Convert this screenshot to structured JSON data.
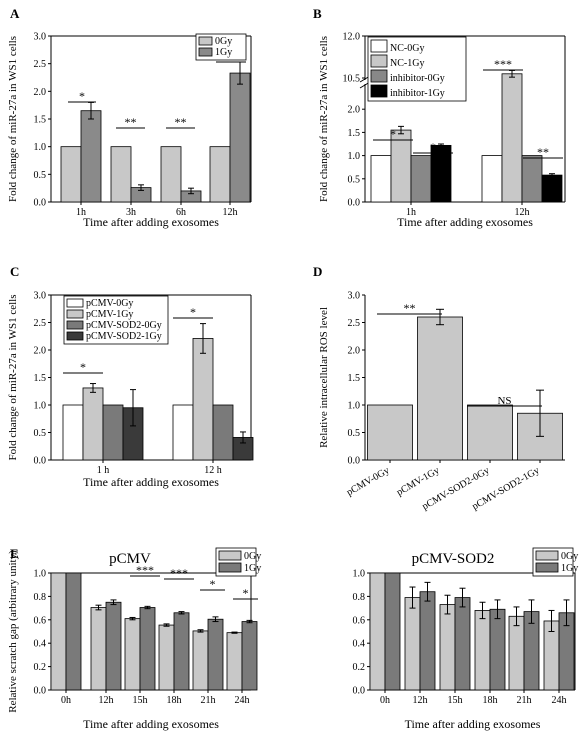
{
  "colors": {
    "white": "#ffffff",
    "light": "#c8c8c8",
    "mid": "#909090",
    "dark": "#606060",
    "darker": "#3a3a3a",
    "black": "#000000"
  },
  "chart_data": [
    {
      "panel": "A",
      "type": "bar",
      "categories": [
        "1h",
        "3h",
        "6h",
        "12h"
      ],
      "series": [
        {
          "name": "0Gy",
          "values": [
            1.0,
            1.0,
            1.0,
            1.0
          ],
          "errors": [
            0,
            0,
            0,
            0
          ],
          "color": "#c8c8c8"
        },
        {
          "name": "1Gy",
          "values": [
            1.65,
            0.26,
            0.2,
            2.33
          ],
          "errors": [
            0.15,
            0.05,
            0.05,
            0.2
          ],
          "color": "#8a8a8a"
        }
      ],
      "ylim": [
        0,
        3.0
      ],
      "yticks": [
        "0.0",
        "0.5",
        "1.0",
        "1.5",
        "2.0",
        "2.5",
        "3.0"
      ],
      "ylabel": "Fold change of miR-27a in WS1 cells",
      "xlabel": "Time after adding exosomes",
      "legend": "top-right",
      "annotations": [
        "*",
        "**",
        "**",
        "*"
      ]
    },
    {
      "panel": "B",
      "type": "bar",
      "categories": [
        "1h",
        "12h"
      ],
      "series": [
        {
          "name": "NC-0Gy",
          "values": [
            1.0,
            1.0
          ],
          "errors": [
            0,
            0
          ],
          "color": "#ffffff"
        },
        {
          "name": "NC-1Gy",
          "values": [
            1.55,
            10.65
          ],
          "errors": [
            0.08,
            0.12
          ],
          "color": "#c8c8c8"
        },
        {
          "name": "inhibitor-0Gy",
          "values": [
            1.0,
            1.0
          ],
          "errors": [
            0,
            0
          ],
          "color": "#888888"
        },
        {
          "name": "inhibitor-1Gy",
          "values": [
            1.22,
            0.58
          ],
          "errors": [
            0.03,
            0.03
          ],
          "color": "#000000"
        }
      ],
      "ylim": [
        0,
        12.0
      ],
      "axis_break": [
        2.5,
        10.5
      ],
      "yticks": [
        "0.0",
        "0.5",
        "1.0",
        "1.5",
        "2.0",
        "10.5",
        "12.0"
      ],
      "ylabel": "Fold change of miR-27a in WS1 cells",
      "xlabel": "Time after adding exosomes",
      "legend": "top-left",
      "annotations": [
        "*",
        "*",
        "***",
        "**"
      ]
    },
    {
      "panel": "C",
      "type": "bar",
      "categories": [
        "1 h",
        "12 h"
      ],
      "series": [
        {
          "name": "pCMV-0Gy",
          "values": [
            1.0,
            1.0
          ],
          "errors": [
            0,
            0
          ],
          "color": "#ffffff"
        },
        {
          "name": "pCMV-1Gy",
          "values": [
            1.31,
            2.21
          ],
          "errors": [
            0.08,
            0.27
          ],
          "color": "#c8c8c8"
        },
        {
          "name": "pCMV-SOD2-0Gy",
          "values": [
            1.0,
            1.0
          ],
          "errors": [
            0,
            0
          ],
          "color": "#7a7a7a"
        },
        {
          "name": "pCMV-SOD2-1Gy",
          "values": [
            0.95,
            0.41
          ],
          "errors": [
            0.33,
            0.1
          ],
          "color": "#3a3a3a"
        }
      ],
      "ylim": [
        0,
        3.0
      ],
      "yticks": [
        "0.0",
        "0.5",
        "1.0",
        "1.5",
        "2.0",
        "2.5",
        "3.0"
      ],
      "ylabel": "Fold change of miR-27a in WS1 cells",
      "xlabel": "Time after adding exosomes",
      "legend": "top-left",
      "annotations": [
        "*",
        "*"
      ]
    },
    {
      "panel": "D",
      "type": "bar",
      "categories": [
        "pCMV-0Gy",
        "pCMV-1Gy",
        "pCMV-SOD2-0Gy",
        "pCMV-SOD2-1Gy"
      ],
      "values": [
        1.0,
        2.6,
        1.0,
        0.85
      ],
      "errors": [
        0,
        0.14,
        0,
        0.42
      ],
      "color": "#c8c8c8",
      "ylim": [
        0,
        3.0
      ],
      "yticks": [
        "0.0",
        "0.5",
        "1.0",
        "1.5",
        "2.0",
        "2.5",
        "3.0"
      ],
      "ylabel": "Relative intracellular ROS level",
      "annotations": [
        "**",
        "NS"
      ]
    },
    {
      "panel": "E",
      "type": "bar",
      "title": "pCMV",
      "categories": [
        "0h",
        "12h",
        "15h",
        "18h",
        "21h",
        "24h"
      ],
      "series": [
        {
          "name": "0Gy",
          "values": [
            1.0,
            0.705,
            0.61,
            0.555,
            0.505,
            0.49
          ],
          "errors": [
            0,
            0.02,
            0.01,
            0.01,
            0.01,
            0.005
          ],
          "color": "#c8c8c8"
        },
        {
          "name": "1Gy",
          "values": [
            1.0,
            0.75,
            0.705,
            0.66,
            0.605,
            0.585
          ],
          "errors": [
            0,
            0.02,
            0.01,
            0.01,
            0.02,
            0.01
          ],
          "color": "#7a7a7a"
        }
      ],
      "ylim": [
        0,
        1.0
      ],
      "yticks": [
        "0.0",
        "0.2",
        "0.4",
        "0.6",
        "0.8",
        "1.0"
      ],
      "ylabel": "Relative scratch gap (arbitrary unity)",
      "xlabel": "Time after adding exosomes",
      "legend": "top-right",
      "annotations": [
        "***",
        "***",
        "*",
        "*"
      ]
    },
    {
      "panel": "",
      "type": "bar",
      "title": "pCMV-SOD2",
      "categories": [
        "0h",
        "12h",
        "15h",
        "18h",
        "21h",
        "24h"
      ],
      "series": [
        {
          "name": "0Gy",
          "values": [
            1.0,
            0.79,
            0.73,
            0.68,
            0.63,
            0.59
          ],
          "errors": [
            0,
            0.09,
            0.08,
            0.07,
            0.08,
            0.09
          ],
          "color": "#c8c8c8"
        },
        {
          "name": "1Gy",
          "values": [
            1.0,
            0.84,
            0.79,
            0.69,
            0.67,
            0.66
          ],
          "errors": [
            0,
            0.08,
            0.08,
            0.08,
            0.1,
            0.11
          ],
          "color": "#7a7a7a"
        }
      ],
      "ylim": [
        0,
        1.0
      ],
      "yticks": [
        "0.0",
        "0.2",
        "0.4",
        "0.6",
        "0.8",
        "1.0"
      ],
      "xlabel": "Time after adding exosomes",
      "legend": "top-right"
    }
  ]
}
